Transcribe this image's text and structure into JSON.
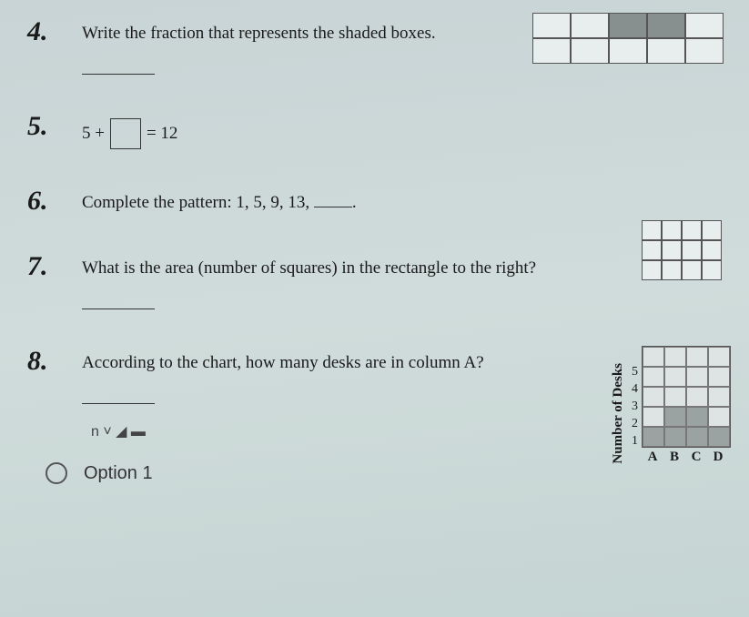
{
  "q4": {
    "number": "4.",
    "text": "Write the fraction that represents the shaded boxes.",
    "grid": {
      "rows": 2,
      "cols": 5,
      "shaded_cells": [
        2,
        3
      ]
    }
  },
  "q5": {
    "number": "5.",
    "left": "5 +",
    "right": "= 12"
  },
  "q6": {
    "number": "6.",
    "text": "Complete the pattern: 1, 5, 9, 13, ",
    "trailing": "."
  },
  "q7": {
    "number": "7.",
    "text": "What is the area (number of squares) in the rectangle to the right?",
    "grid": {
      "rows": 3,
      "cols": 4
    }
  },
  "q8": {
    "number": "8.",
    "text": "According to the chart, how many desks are in column A?",
    "chart": {
      "ylabel": "Number of Desks",
      "yticks": [
        "5",
        "4",
        "3",
        "2",
        "1"
      ],
      "xticks": [
        "A",
        "B",
        "C",
        "D"
      ],
      "rows": 5,
      "cols": 4,
      "bar_heights": [
        1,
        2,
        2,
        1
      ]
    }
  },
  "cutoff_text": "n ˅ ◢ ▬",
  "option1_label": "Option 1"
}
